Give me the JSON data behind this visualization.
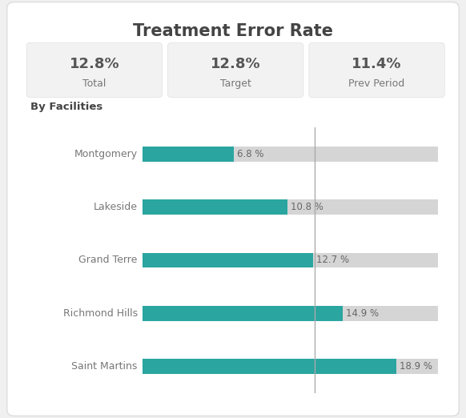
{
  "title": "Treatment Error Rate",
  "metrics": [
    {
      "label": "Total",
      "value": "12.8%"
    },
    {
      "label": "Target",
      "value": "12.8%"
    },
    {
      "label": "Prev Period",
      "value": "11.4%"
    }
  ],
  "section_label": "By Facilities",
  "facilities": [
    "Montgomery",
    "Lakeside",
    "Grand Terre",
    "Richmond Hills",
    "Saint Martins"
  ],
  "values": [
    6.8,
    10.8,
    12.7,
    14.9,
    18.9
  ],
  "bar_max": 22,
  "target_line": 12.8,
  "bar_color": "#2aa5a0",
  "bg_bar_color": "#d5d5d5",
  "card_bg_color": "#f2f2f2",
  "chart_bg": "#ffffff",
  "outer_bg": "#f0f0f0",
  "title_color": "#444444",
  "label_color": "#777777",
  "value_color": "#666666",
  "metric_value_color": "#555555",
  "target_line_color": "#aaaaaa",
  "bar_height": 0.28
}
